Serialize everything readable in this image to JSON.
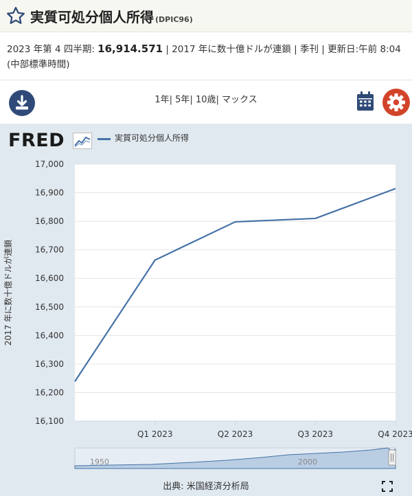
{
  "header": {
    "title": "実質可処分個人所得",
    "series_id": "(DPIC96)"
  },
  "meta": {
    "period_label": "2023 年第 4 四半期:",
    "value": "16,914.571",
    "details": "| 2017 年に数十億ドルが連鎖 | 季刊 | 更新日:午前 8:04 (中部標準時間)"
  },
  "toolbar": {
    "ranges": [
      "1年",
      "5年",
      "10歳",
      "マックス"
    ],
    "download_icon": "download-icon",
    "calendar_icon": "calendar-icon",
    "settings_icon": "gear-icon"
  },
  "branding": {
    "logo_text": "FRED"
  },
  "chart_data": {
    "type": "line",
    "series": [
      {
        "name": "実質可処分個人所得",
        "x": [
          "2022 Q4",
          "2023 Q1",
          "2023 Q2",
          "2023 Q3",
          "2023 Q4"
        ],
        "values": [
          16239,
          16664,
          16798,
          16810,
          16914.571
        ]
      }
    ],
    "x_ticks": [
      "Q1 2023",
      "Q2 2023",
      "Q3 2023",
      "Q4 2023"
    ],
    "ylabel": "2017 年に数十億ドルが連鎖",
    "ylim": [
      16100,
      17000
    ],
    "y_ticks": [
      "16,100",
      "16,200",
      "16,300",
      "16,400",
      "16,500",
      "16,600",
      "16,700",
      "16,800",
      "16,900",
      "17,000"
    ],
    "line_color": "#4572a7",
    "grid": "horizontal",
    "legend": "top-left"
  },
  "navigator": {
    "labels": [
      "1950",
      "2000"
    ]
  },
  "footer": {
    "source": "出典: 米国経済分析局"
  }
}
